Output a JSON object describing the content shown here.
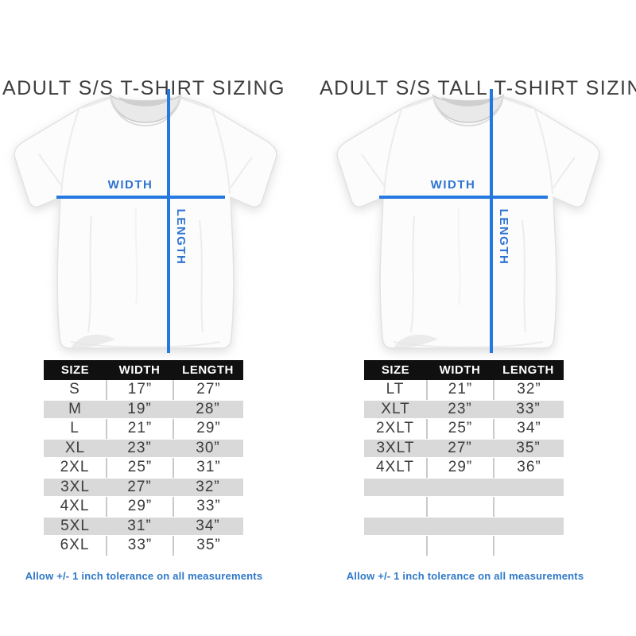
{
  "colors": {
    "accent_blue_lines": "#2478e0",
    "label_blue": "#2e73d2",
    "footnote_blue": "#2e78c8",
    "table_header_bg": "#101010",
    "table_header_text": "#ffffff",
    "shaded_row_gray": "#d9d9d9",
    "grid_line_gray": "#c9c9c9",
    "text_dark": "#3c3c3c"
  },
  "panels": [
    {
      "title": "ADULT S/S T-SHIRT SIZING",
      "diagram": {
        "width_label": "WIDTH",
        "length_label": "LENGTH"
      },
      "table": {
        "headers": [
          "SIZE",
          "WIDTH",
          "LENGTH"
        ],
        "rows": [
          [
            "S",
            "17”",
            "27”"
          ],
          [
            "M",
            "19”",
            "28”"
          ],
          [
            "L",
            "21”",
            "29”"
          ],
          [
            "XL",
            "23”",
            "30”"
          ],
          [
            "2XL",
            "25”",
            "31”"
          ],
          [
            "3XL",
            "27”",
            "32”"
          ],
          [
            "4XL",
            "29”",
            "33”"
          ],
          [
            "5XL",
            "31”",
            "34”"
          ],
          [
            "6XL",
            "33”",
            "35”"
          ]
        ],
        "empty_rows": 0
      },
      "footnote": "Allow +/- 1 inch tolerance on all measurements"
    },
    {
      "title": "ADULT S/S TALL T-SHIRT SIZING",
      "diagram": {
        "width_label": "WIDTH",
        "length_label": "LENGTH"
      },
      "table": {
        "headers": [
          "SIZE",
          "WIDTH",
          "LENGTH"
        ],
        "rows": [
          [
            "LT",
            "21”",
            "32”"
          ],
          [
            "XLT",
            "23”",
            "33”"
          ],
          [
            "2XLT",
            "25”",
            "34”"
          ],
          [
            "3XLT",
            "27”",
            "35”"
          ],
          [
            "4XLT",
            "29”",
            "36”"
          ]
        ],
        "empty_rows": 4
      },
      "footnote": "Allow +/- 1 inch tolerance on all measurements"
    }
  ]
}
